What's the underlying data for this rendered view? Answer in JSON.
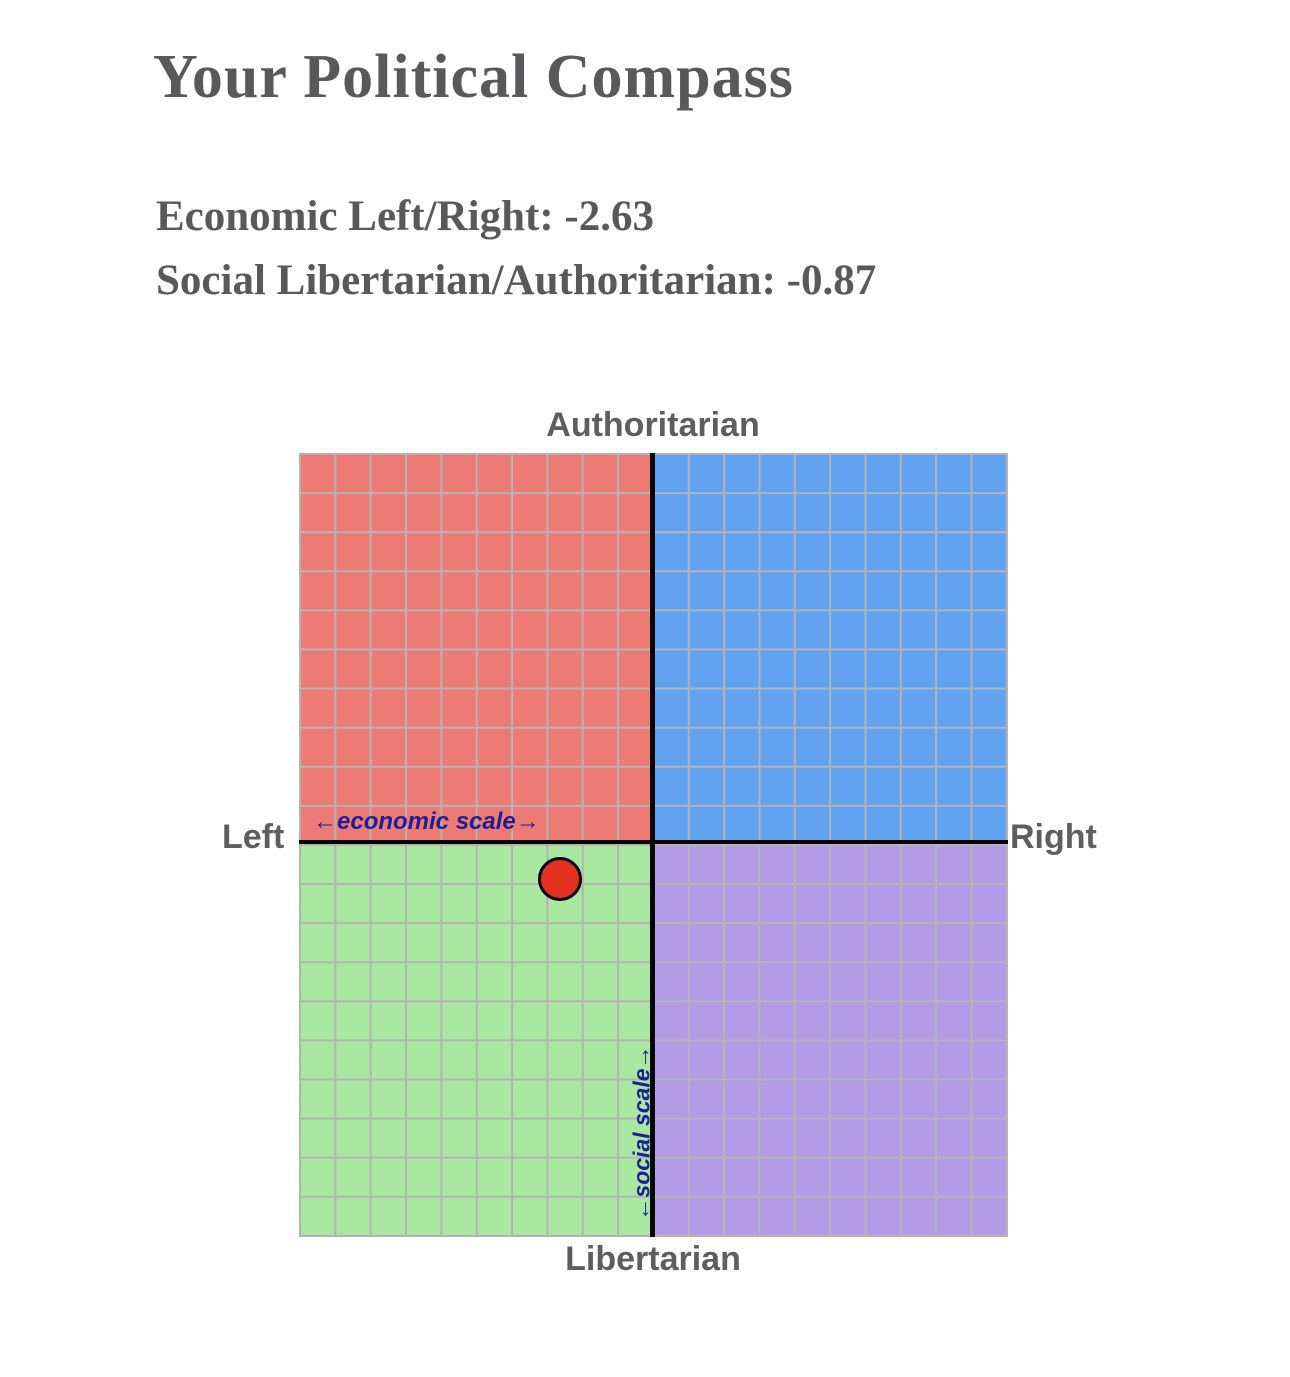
{
  "header": {
    "title": "Your Political Compass",
    "score_lines": [
      "Economic Left/Right: -2.63",
      "Social Libertarian/Authoritarian: -0.87"
    ]
  },
  "theme": {
    "text_gray": "#59595b",
    "label_gray": "#5e5e5e",
    "caption_navy": "#1e1e96"
  },
  "chart_data": {
    "type": "scatter",
    "title": "Your Political Compass",
    "x_axis": {
      "label_negative": "Left",
      "label_positive": "Right",
      "scale_caption": "←economic scale→",
      "range": [
        -10,
        10
      ],
      "grid_cells": 20
    },
    "y_axis": {
      "label_positive": "Authoritarian",
      "label_negative": "Libertarian",
      "scale_caption": "←social scale→",
      "range": [
        -10,
        10
      ],
      "grid_cells": 20
    },
    "grid": {
      "line_color": "#b4b4b4",
      "axis_color": "#000000"
    },
    "quadrant_colors": {
      "top_left": "#ee7a76",
      "top_right": "#61a3f0",
      "bottom_left": "#a8e8a0",
      "bottom_right": "#b59ae8"
    },
    "points": [
      {
        "name": "user-result",
        "economic": -2.63,
        "social": -0.87,
        "fill": "#e33120",
        "stroke": "#000000"
      }
    ]
  }
}
